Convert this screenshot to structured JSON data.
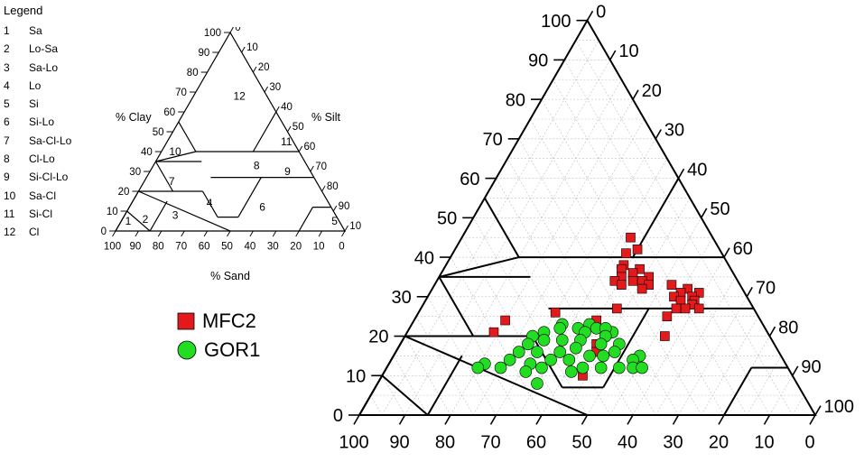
{
  "legend": {
    "title": "Legend",
    "items": [
      {
        "num": "1",
        "label": "Sa"
      },
      {
        "num": "2",
        "label": "Lo-Sa"
      },
      {
        "num": "3",
        "label": "Sa-Lo"
      },
      {
        "num": "4",
        "label": "Lo"
      },
      {
        "num": "5",
        "label": "Si"
      },
      {
        "num": "6",
        "label": "Si-Lo"
      },
      {
        "num": "7",
        "label": "Sa-Cl-Lo"
      },
      {
        "num": "8",
        "label": "Cl-Lo"
      },
      {
        "num": "9",
        "label": "Si-Cl-Lo"
      },
      {
        "num": "10",
        "label": "Sa-Cl"
      },
      {
        "num": "11",
        "label": "Si-Cl"
      },
      {
        "num": "12",
        "label": "Cl"
      }
    ]
  },
  "small_chart": {
    "clay_label": "% Clay",
    "silt_label": "% Silt",
    "sand_label": "% Sand"
  },
  "colors": {
    "mfc2": "#e31a1c",
    "gor1": "#22dd22"
  },
  "chart_data": {
    "type": "scatter",
    "ternary": true,
    "axes": [
      "Sand",
      "Silt",
      "Clay"
    ],
    "ticks": [
      "0",
      "10",
      "20",
      "30",
      "40",
      "50",
      "60",
      "70",
      "80",
      "90",
      "100"
    ],
    "grid": true,
    "series": [
      {
        "name": "MFC2",
        "marker": "square",
        "points": [
          {
            "sand": 18,
            "clay": 45
          },
          {
            "sand": 18,
            "clay": 42
          },
          {
            "sand": 21,
            "clay": 41
          },
          {
            "sand": 23,
            "clay": 38
          },
          {
            "sand": 24,
            "clay": 37
          },
          {
            "sand": 20,
            "clay": 37
          },
          {
            "sand": 22,
            "clay": 36
          },
          {
            "sand": 19,
            "clay": 35
          },
          {
            "sand": 21,
            "clay": 34
          },
          {
            "sand": 23,
            "clay": 34
          },
          {
            "sand": 25,
            "clay": 35
          },
          {
            "sand": 27,
            "clay": 34
          },
          {
            "sand": 26,
            "clay": 33
          },
          {
            "sand": 20,
            "clay": 33
          },
          {
            "sand": 22,
            "clay": 32
          },
          {
            "sand": 15,
            "clay": 33
          },
          {
            "sand": 12,
            "clay": 32
          },
          {
            "sand": 10,
            "clay": 31
          },
          {
            "sand": 12,
            "clay": 30
          },
          {
            "sand": 14,
            "clay": 31
          },
          {
            "sand": 16,
            "clay": 30
          },
          {
            "sand": 15,
            "clay": 29
          },
          {
            "sand": 12,
            "clay": 29
          },
          {
            "sand": 13,
            "clay": 28
          },
          {
            "sand": 12,
            "clay": 27
          },
          {
            "sand": 15,
            "clay": 27
          },
          {
            "sand": 17,
            "clay": 27
          },
          {
            "sand": 20,
            "clay": 25
          },
          {
            "sand": 30,
            "clay": 27
          },
          {
            "sand": 36,
            "clay": 24
          },
          {
            "sand": 44,
            "clay": 26
          },
          {
            "sand": 56,
            "clay": 24
          },
          {
            "sand": 60,
            "clay": 21
          },
          {
            "sand": 23,
            "clay": 20
          },
          {
            "sand": 39,
            "clay": 18
          },
          {
            "sand": 40,
            "clay": 16
          },
          {
            "sand": 46,
            "clay": 10
          }
        ]
      },
      {
        "name": "GOR1",
        "marker": "circle",
        "points": [
          {
            "sand": 44,
            "clay": 23
          },
          {
            "sand": 45,
            "clay": 22
          },
          {
            "sand": 41,
            "clay": 22
          },
          {
            "sand": 38,
            "clay": 23
          },
          {
            "sand": 40,
            "clay": 21
          },
          {
            "sand": 37,
            "clay": 22
          },
          {
            "sand": 34,
            "clay": 21
          },
          {
            "sand": 35,
            "clay": 22
          },
          {
            "sand": 36,
            "clay": 20
          },
          {
            "sand": 49,
            "clay": 21
          },
          {
            "sand": 52,
            "clay": 20
          },
          {
            "sand": 50,
            "clay": 19
          },
          {
            "sand": 54,
            "clay": 18
          },
          {
            "sand": 42,
            "clay": 19
          },
          {
            "sand": 46,
            "clay": 19
          },
          {
            "sand": 34,
            "clay": 18
          },
          {
            "sand": 38,
            "clay": 18
          },
          {
            "sand": 44,
            "clay": 17
          },
          {
            "sand": 57,
            "clay": 16
          },
          {
            "sand": 53,
            "clay": 16
          },
          {
            "sand": 48,
            "clay": 16
          },
          {
            "sand": 42,
            "clay": 15
          },
          {
            "sand": 36,
            "clay": 16
          },
          {
            "sand": 39,
            "clay": 15
          },
          {
            "sand": 31,
            "clay": 15
          },
          {
            "sand": 33,
            "clay": 14
          },
          {
            "sand": 47,
            "clay": 14
          },
          {
            "sand": 51,
            "clay": 14
          },
          {
            "sand": 56,
            "clay": 13
          },
          {
            "sand": 60,
            "clay": 14
          },
          {
            "sand": 58,
            "clay": 11
          },
          {
            "sand": 54,
            "clay": 12
          },
          {
            "sand": 45,
            "clay": 12
          },
          {
            "sand": 41,
            "clay": 12
          },
          {
            "sand": 37,
            "clay": 12
          },
          {
            "sand": 34,
            "clay": 12
          },
          {
            "sand": 66,
            "clay": 13
          },
          {
            "sand": 68,
            "clay": 12
          },
          {
            "sand": 63,
            "clay": 12
          },
          {
            "sand": 57,
            "clay": 8
          },
          {
            "sand": 48,
            "clay": 11
          },
          {
            "sand": 32,
            "clay": 12
          }
        ]
      }
    ]
  }
}
